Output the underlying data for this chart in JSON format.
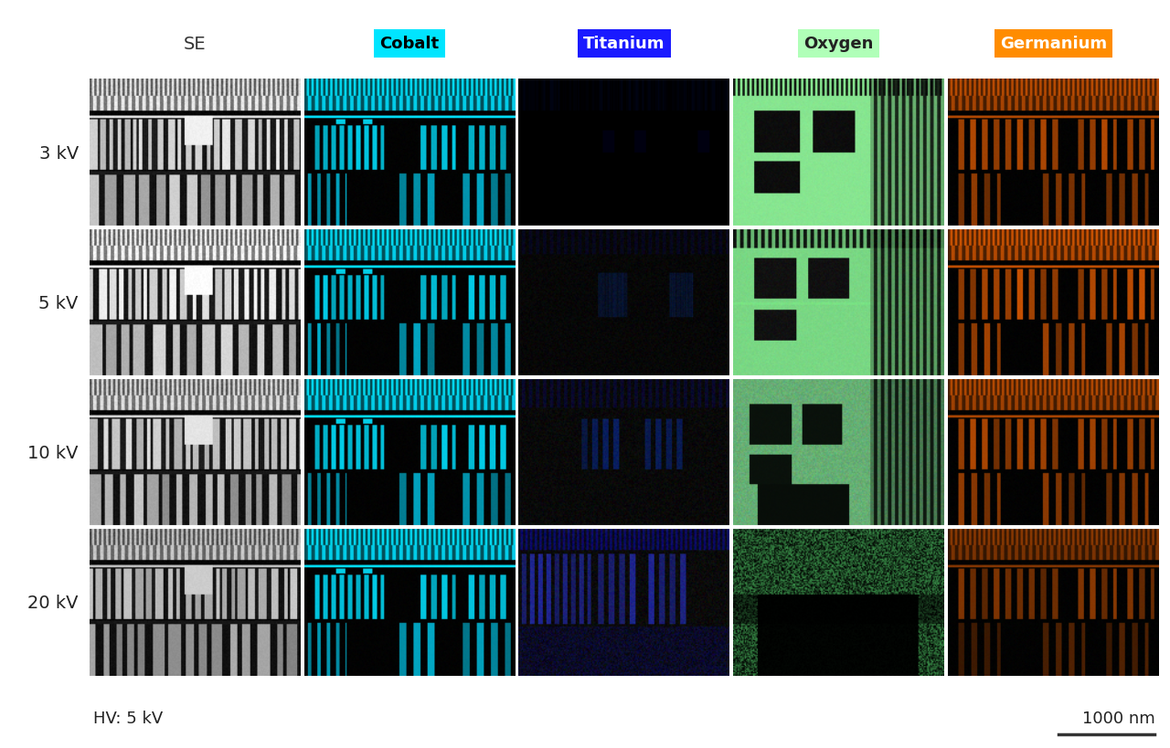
{
  "title_labels": [
    "SE",
    "Cobalt",
    "Titanium",
    "Oxygen",
    "Germanium"
  ],
  "row_labels": [
    "3 kV",
    "5 kV",
    "10 kV",
    "20 kV"
  ],
  "label_colors_bg": [
    "none",
    "#00E5FF",
    "#1A1AFF",
    "#B0FFB8",
    "#FF8C00"
  ],
  "label_colors_text": [
    "#333333",
    "#000000",
    "#FFFFFF",
    "#222222",
    "#FFFFFF"
  ],
  "footer_left": "HV: 5 kV",
  "footer_right": "1000 nm",
  "bg_color": "#FFFFFF",
  "n_rows": 4,
  "n_cols": 5
}
